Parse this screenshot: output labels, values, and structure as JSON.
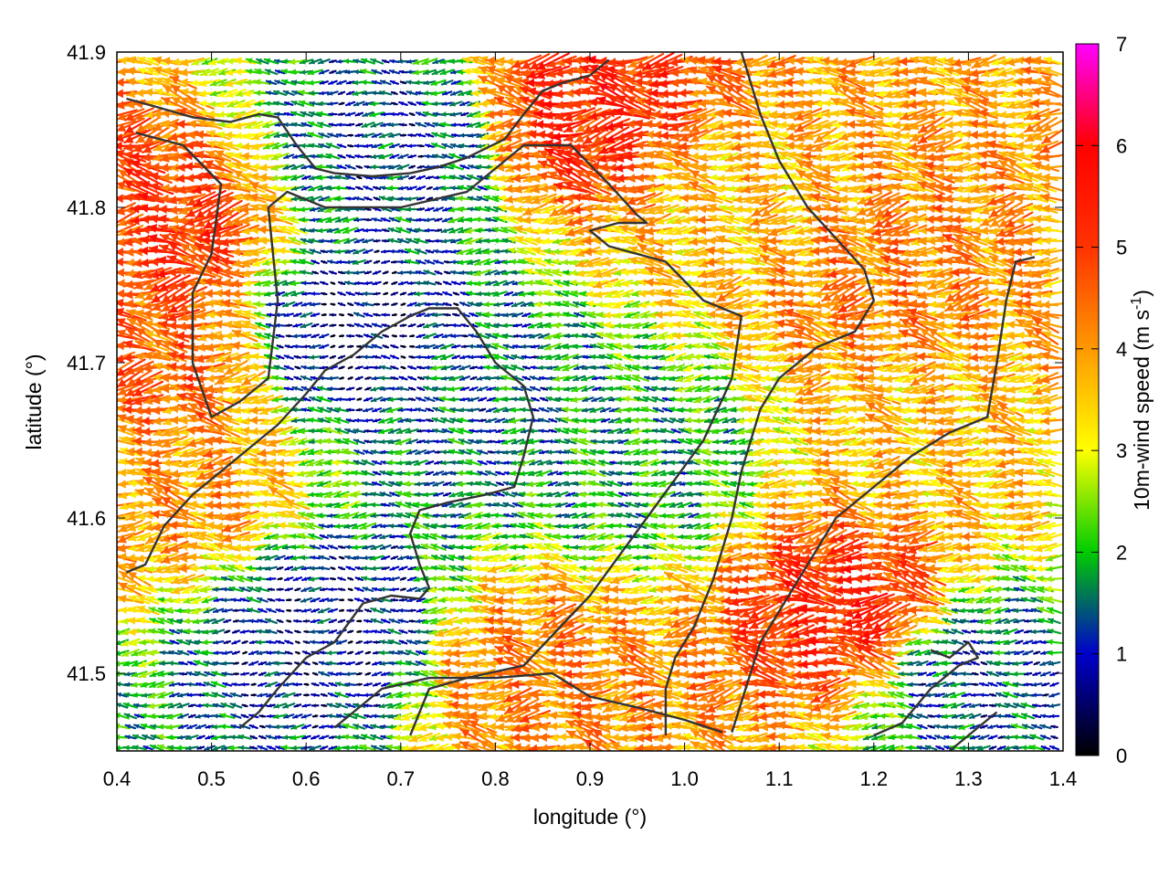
{
  "chart_data": {
    "type": "vector-field",
    "xlabel": "longitude (°)",
    "ylabel": "latitude (°)",
    "xlim": [
      0.4,
      1.4
    ],
    "ylim": [
      41.45,
      41.9
    ],
    "xticks": [
      "0.4",
      "0.5",
      "0.6",
      "0.7",
      "0.8",
      "0.9",
      "1.0",
      "1.1",
      "1.2",
      "1.3",
      "1.4"
    ],
    "yticks": [
      "41.5",
      "41.6",
      "41.7",
      "41.8",
      "41.9"
    ],
    "grid": true,
    "colorbar": {
      "label": "10m-wind speed (m s",
      "label_sup": "-1",
      "label_close": ")",
      "range": [
        0,
        7
      ],
      "ticks": [
        "0",
        "1",
        "2",
        "3",
        "4",
        "5",
        "6",
        "7"
      ],
      "palette": [
        "#000000",
        "#0000cc",
        "#00cc00",
        "#ffff00",
        "#ff8800",
        "#ff0000",
        "#ff00ff"
      ]
    },
    "wind_speed_regions": [
      {
        "lon": 0.45,
        "lat": 41.78,
        "speed": 5.0
      },
      {
        "lon": 0.45,
        "lat": 41.7,
        "speed": 4.5
      },
      {
        "lon": 0.47,
        "lat": 41.62,
        "speed": 4.0
      },
      {
        "lon": 0.65,
        "lat": 41.72,
        "speed": 0.6
      },
      {
        "lon": 0.62,
        "lat": 41.53,
        "speed": 0.8
      },
      {
        "lon": 0.78,
        "lat": 41.67,
        "speed": 1.4
      },
      {
        "lon": 0.95,
        "lat": 41.64,
        "speed": 1.8
      },
      {
        "lon": 0.9,
        "lat": 41.86,
        "speed": 5.2
      },
      {
        "lon": 1.05,
        "lat": 41.8,
        "speed": 3.6
      },
      {
        "lon": 1.2,
        "lat": 41.75,
        "speed": 4.2
      },
      {
        "lon": 1.25,
        "lat": 41.65,
        "speed": 3.6
      },
      {
        "lon": 1.18,
        "lat": 41.54,
        "speed": 5.2
      },
      {
        "lon": 0.85,
        "lat": 41.5,
        "speed": 4.2
      },
      {
        "lon": 0.7,
        "lat": 41.84,
        "speed": 1.1
      },
      {
        "lon": 1.3,
        "lat": 41.5,
        "speed": 1.2
      }
    ],
    "wind_direction_deg_from_east": 180,
    "coastlines": [
      [
        [
          0.41,
          41.87
        ],
        [
          0.44,
          41.865
        ],
        [
          0.48,
          41.858
        ],
        [
          0.52,
          41.855
        ],
        [
          0.55,
          41.86
        ],
        [
          0.57,
          41.858
        ],
        [
          0.59,
          41.84
        ],
        [
          0.61,
          41.825
        ],
        [
          0.63,
          41.822
        ],
        [
          0.67,
          41.82
        ],
        [
          0.71,
          41.822
        ],
        [
          0.74,
          41.826
        ],
        [
          0.77,
          41.832
        ],
        [
          0.81,
          41.844
        ],
        [
          0.83,
          41.86
        ],
        [
          0.85,
          41.875
        ],
        [
          0.87,
          41.88
        ],
        [
          0.9,
          41.885
        ],
        [
          0.92,
          41.895
        ]
      ],
      [
        [
          0.42,
          41.848
        ],
        [
          0.47,
          41.84
        ],
        [
          0.51,
          41.815
        ],
        [
          0.5,
          41.77
        ],
        [
          0.48,
          41.745
        ],
        [
          0.48,
          41.7
        ],
        [
          0.5,
          41.665
        ],
        [
          0.53,
          41.675
        ],
        [
          0.56,
          41.69
        ],
        [
          0.57,
          41.74
        ],
        [
          0.56,
          41.8
        ],
        [
          0.58,
          41.81
        ],
        [
          0.62,
          41.8
        ],
        [
          0.7,
          41.8
        ],
        [
          0.77,
          41.81
        ],
        [
          0.83,
          41.84
        ],
        [
          0.88,
          41.84
        ],
        [
          0.92,
          41.815
        ],
        [
          0.95,
          41.795
        ],
        [
          0.96,
          41.79
        ],
        [
          0.93,
          41.79
        ],
        [
          0.9,
          41.785
        ],
        [
          0.92,
          41.775
        ],
        [
          0.98,
          41.765
        ],
        [
          1.02,
          41.74
        ],
        [
          1.06,
          41.73
        ],
        [
          1.05,
          41.69
        ],
        [
          1.02,
          41.65
        ],
        [
          0.96,
          41.6
        ],
        [
          0.9,
          41.55
        ],
        [
          0.83,
          41.505
        ],
        [
          0.77,
          41.497
        ],
        [
          0.73,
          41.49
        ],
        [
          0.72,
          41.475
        ],
        [
          0.71,
          41.46
        ]
      ],
      [
        [
          0.41,
          41.565
        ],
        [
          0.43,
          41.57
        ],
        [
          0.45,
          41.595
        ],
        [
          0.48,
          41.615
        ],
        [
          0.53,
          41.64
        ],
        [
          0.57,
          41.66
        ],
        [
          0.6,
          41.68
        ],
        [
          0.62,
          41.695
        ],
        [
          0.65,
          41.705
        ],
        [
          0.68,
          41.72
        ],
        [
          0.71,
          41.73
        ],
        [
          0.73,
          41.735
        ],
        [
          0.76,
          41.735
        ],
        [
          0.78,
          41.72
        ],
        [
          0.8,
          41.7
        ],
        [
          0.83,
          41.685
        ],
        [
          0.84,
          41.665
        ],
        [
          0.83,
          41.64
        ],
        [
          0.82,
          41.62
        ],
        [
          0.79,
          41.615
        ],
        [
          0.75,
          41.61
        ],
        [
          0.72,
          41.605
        ],
        [
          0.71,
          41.59
        ],
        [
          0.72,
          41.57
        ],
        [
          0.73,
          41.555
        ],
        [
          0.72,
          41.548
        ],
        [
          0.69,
          41.55
        ],
        [
          0.66,
          41.545
        ],
        [
          0.63,
          41.52
        ],
        [
          0.6,
          41.51
        ],
        [
          0.57,
          41.49
        ],
        [
          0.55,
          41.475
        ],
        [
          0.53,
          41.465
        ]
      ],
      [
        [
          0.63,
          41.465
        ],
        [
          0.65,
          41.475
        ],
        [
          0.68,
          41.49
        ],
        [
          0.73,
          41.497
        ],
        [
          0.8,
          41.497
        ],
        [
          0.86,
          41.5
        ],
        [
          0.9,
          41.485
        ],
        [
          0.95,
          41.478
        ],
        [
          1.0,
          41.47
        ],
        [
          1.04,
          41.462
        ]
      ],
      [
        [
          1.06,
          41.9
        ],
        [
          1.08,
          41.86
        ],
        [
          1.1,
          41.83
        ],
        [
          1.13,
          41.8
        ],
        [
          1.16,
          41.78
        ],
        [
          1.19,
          41.76
        ],
        [
          1.2,
          41.74
        ],
        [
          1.18,
          41.72
        ],
        [
          1.14,
          41.71
        ],
        [
          1.1,
          41.69
        ],
        [
          1.08,
          41.67
        ],
        [
          1.06,
          41.63
        ],
        [
          1.05,
          41.6
        ],
        [
          1.03,
          41.56
        ],
        [
          1.01,
          41.53
        ],
        [
          0.99,
          41.51
        ],
        [
          0.98,
          41.49
        ],
        [
          0.98,
          41.46
        ]
      ],
      [
        [
          1.05,
          41.462
        ],
        [
          1.08,
          41.52
        ],
        [
          1.12,
          41.56
        ],
        [
          1.16,
          41.6
        ],
        [
          1.2,
          41.62
        ],
        [
          1.24,
          41.64
        ],
        [
          1.28,
          41.655
        ],
        [
          1.3,
          41.66
        ],
        [
          1.32,
          41.665
        ],
        [
          1.33,
          41.7
        ],
        [
          1.34,
          41.74
        ],
        [
          1.35,
          41.765
        ],
        [
          1.37,
          41.768
        ]
      ],
      [
        [
          1.28,
          41.45
        ],
        [
          1.3,
          41.46
        ],
        [
          1.32,
          41.47
        ],
        [
          1.33,
          41.475
        ]
      ],
      [
        [
          1.2,
          41.46
        ],
        [
          1.23,
          41.468
        ],
        [
          1.26,
          41.49
        ],
        [
          1.29,
          41.505
        ],
        [
          1.31,
          41.51
        ],
        [
          1.3,
          41.52
        ],
        [
          1.28,
          41.51
        ],
        [
          1.26,
          41.515
        ]
      ]
    ]
  }
}
